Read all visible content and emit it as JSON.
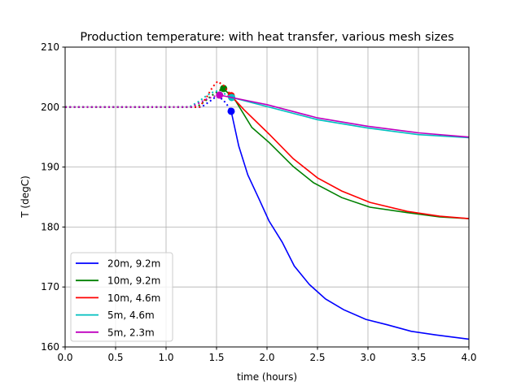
{
  "chart_data": {
    "type": "line",
    "title": "Production temperature: with heat transfer, various mesh sizes",
    "xlabel": "time (hours)",
    "ylabel": "T (degC)",
    "xlim": [
      0,
      4
    ],
    "ylim": [
      160,
      210
    ],
    "xticks": [
      "0.0",
      "0.5",
      "1.0",
      "1.5",
      "2.0",
      "2.5",
      "3.0",
      "3.5",
      "4.0"
    ],
    "yticks": [
      "160",
      "170",
      "180",
      "190",
      "200",
      "210"
    ],
    "grid": true,
    "legend_position": "lower-left",
    "series": [
      {
        "name": "20m, 9.2m",
        "color": "#0000ff",
        "dotted": {
          "x": [
            0,
            1.35,
            1.42,
            1.5,
            1.56,
            1.6,
            1.645
          ],
          "y": [
            200,
            200,
            200.8,
            201.8,
            201.3,
            200.5,
            199.3
          ]
        },
        "marker": {
          "x": 1.645,
          "y": 199.3
        },
        "solid": {
          "x": [
            1.645,
            1.72,
            1.81,
            1.92,
            2.02,
            2.15,
            2.27,
            2.42,
            2.58,
            2.76,
            2.98,
            3.19,
            3.43,
            3.67,
            4.0
          ],
          "y": [
            199.3,
            193.5,
            188.7,
            184.7,
            181.0,
            177.5,
            173.5,
            170.4,
            168.0,
            166.2,
            164.6,
            163.7,
            162.6,
            162.0,
            161.3
          ]
        }
      },
      {
        "name": "10m, 9.2m",
        "color": "#008000",
        "dotted": {
          "x": [
            0,
            1.3,
            1.38,
            1.45,
            1.52,
            1.57
          ],
          "y": [
            200,
            200,
            200.9,
            201.9,
            202.7,
            203.1
          ]
        },
        "marker": {
          "x": 1.57,
          "y": 203.1
        },
        "solid": {
          "x": [
            1.57,
            1.69,
            1.85,
            2.02,
            2.26,
            2.46,
            2.74,
            3.02,
            3.39,
            3.71,
            4.0
          ],
          "y": [
            203.1,
            201.0,
            196.6,
            194.1,
            190.1,
            187.4,
            184.9,
            183.3,
            182.4,
            181.7,
            181.4
          ]
        }
      },
      {
        "name": "10m, 4.6m",
        "color": "#ff0000",
        "dotted": {
          "x": [
            0,
            1.33,
            1.4,
            1.46,
            1.51,
            1.57,
            1.645
          ],
          "y": [
            200,
            200,
            201.6,
            203.3,
            204.3,
            203.6,
            201.9
          ]
        },
        "marker": {
          "x": 1.645,
          "y": 201.9
        },
        "solid": {
          "x": [
            1.645,
            1.77,
            2.02,
            2.26,
            2.5,
            2.74,
            3.02,
            3.39,
            3.71,
            4.0
          ],
          "y": [
            201.9,
            199.6,
            195.5,
            191.4,
            188.2,
            186.0,
            184.1,
            182.6,
            181.8,
            181.4
          ]
        }
      },
      {
        "name": "5m, 4.6m",
        "color": "#00bfbf",
        "dotted": {
          "x": [
            0,
            1.23,
            1.32,
            1.41,
            1.49,
            1.57,
            1.65
          ],
          "y": [
            200,
            200,
            200.9,
            202.0,
            202.7,
            202.3,
            201.6
          ]
        },
        "marker": {
          "x": 1.65,
          "y": 201.6
        },
        "solid": {
          "x": [
            1.65,
            2.0,
            2.5,
            3.0,
            3.5,
            4.0
          ],
          "y": [
            201.6,
            200.1,
            197.9,
            196.5,
            195.4,
            194.9
          ]
        }
      },
      {
        "name": "5m, 2.3m",
        "color": "#bf00bf",
        "dotted": {
          "x": [
            0,
            1.25,
            1.33,
            1.41,
            1.48,
            1.53
          ],
          "y": [
            200,
            200,
            200.7,
            201.4,
            201.8,
            202.0
          ]
        },
        "marker": {
          "x": 1.53,
          "y": 202.0
        },
        "solid": {
          "x": [
            1.53,
            2.0,
            2.5,
            3.0,
            3.5,
            4.0
          ],
          "y": [
            202.0,
            200.4,
            198.2,
            196.8,
            195.7,
            195.0
          ]
        }
      }
    ]
  }
}
